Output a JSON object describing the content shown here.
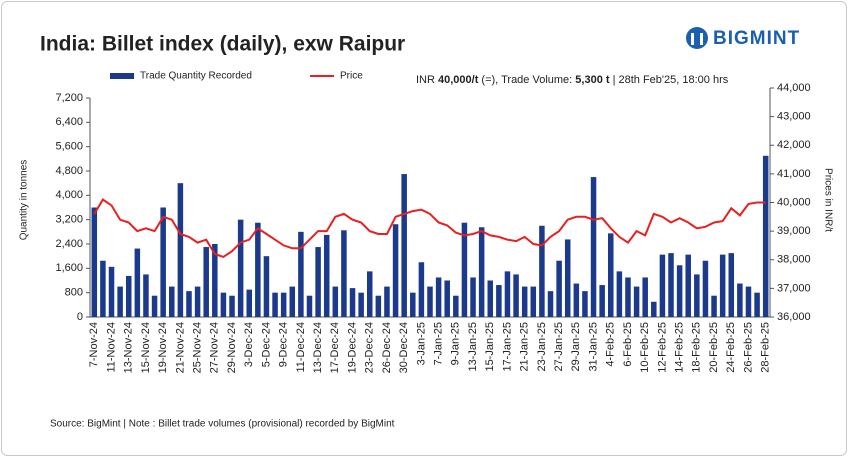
{
  "chart_data": {
    "type": "bar_line",
    "title": "India: Billet index (daily), exw Raipur",
    "logo": "BIGMINT",
    "info": [
      "INR ",
      "40,000/t",
      " (=), Trade Volume: ",
      "5,300 t",
      " | 28th Feb'25, 18:00 hrs"
    ],
    "ylabel": "Quantity in tonnes",
    "y2label": "Prices in INR/t",
    "source": "Source: BigMint | Note : Billet trade volumes (provisional) recorded by BigMint",
    "categories": [
      "7-Nov-24",
      null,
      "11-Nov-24",
      null,
      "13-Nov-24",
      null,
      "15-Nov-24",
      null,
      "19-Nov-24",
      null,
      "21-Nov-24",
      null,
      "25-Nov-24",
      null,
      "27-Nov-24",
      null,
      "29-Nov-24",
      null,
      "3-Dec-24",
      null,
      "5-Dec-24",
      null,
      "9-Dec-24",
      null,
      "11-Dec-24",
      null,
      "13-Dec-24",
      null,
      "17-Dec-24",
      null,
      "19-Dec-24",
      null,
      "23-Dec-24",
      null,
      "26-Dec-24",
      null,
      "30-Dec-24",
      null,
      "3-Jan-25",
      null,
      "7-Jan-25",
      null,
      "9-Jan-25",
      null,
      "13-Jan-25",
      null,
      "15-Jan-25",
      null,
      "17-Jan-25",
      null,
      "21-Jan-25",
      null,
      "23-Jan-25",
      null,
      "27-Jan-25",
      null,
      "29-Jan-25",
      null,
      "31-Jan-25",
      null,
      "4-Feb-25",
      null,
      "6-Feb-25",
      null,
      "10-Feb-25",
      null,
      "12-Feb-25",
      null,
      "14-Feb-25",
      null,
      "18-Feb-25",
      null,
      "20-Feb-25",
      null,
      "24-Feb-25",
      null,
      "26-Feb-25",
      null,
      "28-Feb-25"
    ],
    "series": [
      {
        "name": "Trade Quantity Recorded",
        "color": "#1b3a8c",
        "values": [
          3600,
          1850,
          1650,
          1000,
          1350,
          2250,
          1400,
          700,
          3600,
          1000,
          4400,
          850,
          1000,
          2300,
          2400,
          800,
          700,
          3200,
          900,
          3100,
          2000,
          800,
          800,
          1000,
          2800,
          700,
          2300,
          2700,
          1000,
          2850,
          950,
          800,
          1500,
          700,
          1000,
          3050,
          4700,
          800,
          1800,
          1000,
          1300,
          1200,
          700,
          3100,
          1300,
          2950,
          1200,
          1050,
          1500,
          1400,
          1000,
          1000,
          3000,
          850,
          1850,
          2550,
          1100,
          850,
          4600,
          1050,
          2750,
          1500,
          1300,
          1000,
          1300,
          500,
          2050,
          2100,
          1700,
          2050,
          1400,
          1850,
          700,
          2050,
          2100,
          1100,
          1000,
          800,
          5300
        ]
      },
      {
        "name": "Price",
        "color": "#e8201f",
        "axis": "y2",
        "values": [
          39600,
          40100,
          39900,
          39400,
          39300,
          39000,
          39100,
          39000,
          39500,
          39400,
          38900,
          38800,
          38600,
          38700,
          38200,
          38100,
          38300,
          38600,
          38700,
          39100,
          38900,
          38700,
          38500,
          38400,
          38400,
          38700,
          39000,
          39000,
          39500,
          39600,
          39400,
          39300,
          39000,
          38900,
          38900,
          39500,
          39600,
          39700,
          39750,
          39600,
          39300,
          39200,
          38950,
          38850,
          38900,
          39000,
          38850,
          38800,
          38700,
          38650,
          38800,
          38550,
          38500,
          38800,
          39000,
          39400,
          39500,
          39500,
          39400,
          39450,
          39100,
          38800,
          38600,
          39000,
          38850,
          39600,
          39500,
          39300,
          39450,
          39300,
          39100,
          39150,
          39300,
          39350,
          39800,
          39550,
          39950,
          40000,
          40000
        ]
      }
    ],
    "ylim": [
      0,
      7200
    ],
    "yticks": [
      0,
      800,
      {
        "value": 1600,
        "label": "1,600"
      },
      {
        "value": 2400,
        "label": "2,400"
      },
      {
        "value": 3200,
        "label": "3,200"
      },
      {
        "value": 4000,
        "label": "4,000"
      },
      {
        "value": 4800,
        "label": "4,800"
      },
      {
        "value": 5600,
        "label": "5,600"
      },
      {
        "value": 6400,
        "label": "6,400"
      },
      {
        "value": 7200,
        "label": "7,200"
      }
    ],
    "y2lim": [
      36000,
      44000
    ],
    "y2ticks": [
      {
        "value": 36000,
        "label": "36,000"
      },
      {
        "value": 37000,
        "label": "37,000"
      },
      {
        "value": 38000,
        "label": "38,000"
      },
      {
        "value": 39000,
        "label": "39,000"
      },
      {
        "value": 40000,
        "label": "40,000"
      },
      {
        "value": 41000,
        "label": "41,000"
      },
      {
        "value": 42000,
        "label": "42,000"
      },
      {
        "value": 43000,
        "label": "43,000"
      },
      {
        "value": 44000,
        "label": "44,000"
      }
    ],
    "legend": "top-left"
  }
}
